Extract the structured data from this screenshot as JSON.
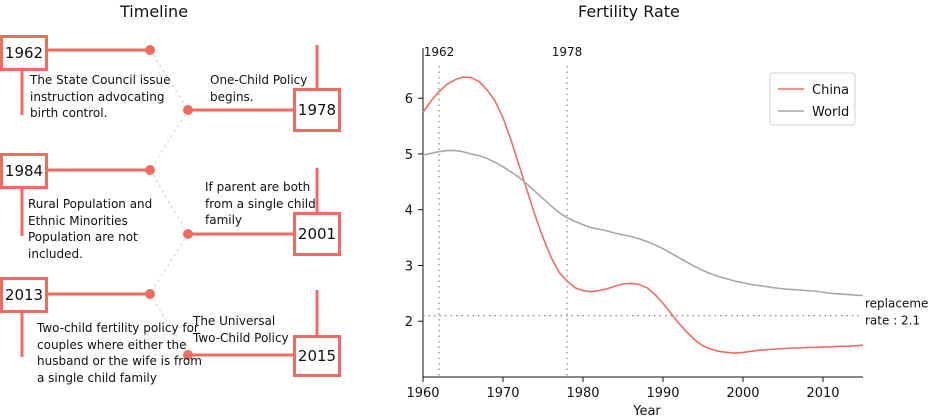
{
  "timeline": {
    "title": "Timeline",
    "events": [
      {
        "year": "1962",
        "text": "The State Council issue instruction advocating birth control."
      },
      {
        "year": "1978",
        "text": "One-Child Policy begins."
      },
      {
        "year": "1984",
        "text": "Rural Population and Ethnic Minorities Population are not included."
      },
      {
        "year": "2001",
        "text": "If parent are both from a single child family"
      },
      {
        "year": "2013",
        "text": "Two-child fertility policy for couples where either the husband or the wife is from a single child family"
      },
      {
        "year": "2015",
        "text": "The Universal Two-Child Policy"
      }
    ]
  },
  "chart_data": {
    "type": "line",
    "title": "Fertility Rate",
    "xlabel": "Year",
    "ylabel": "",
    "xlim": [
      1960,
      2015
    ],
    "ylim": [
      1,
      6.9
    ],
    "xticks": [
      1960,
      1970,
      1980,
      1990,
      2000,
      2010
    ],
    "yticks": [
      2,
      3,
      4,
      5,
      6
    ],
    "grid": false,
    "legend": "top-right",
    "colors": {
      "China": "#f26b63",
      "World": "#a8a8a8",
      "accent": "#f26b63",
      "reference": "#888888"
    },
    "series": [
      {
        "name": "China",
        "x": [
          1960,
          1961,
          1962,
          1963,
          1964,
          1965,
          1966,
          1967,
          1968,
          1969,
          1970,
          1971,
          1972,
          1973,
          1974,
          1975,
          1976,
          1977,
          1978,
          1979,
          1980,
          1981,
          1982,
          1983,
          1984,
          1985,
          1986,
          1987,
          1988,
          1989,
          1990,
          1991,
          1992,
          1993,
          1994,
          1995,
          1996,
          1997,
          1998,
          1999,
          2000,
          2001,
          2002,
          2003,
          2004,
          2005,
          2006,
          2007,
          2008,
          2009,
          2010,
          2011,
          2012,
          2013,
          2014,
          2015
        ],
        "y": [
          5.75,
          5.95,
          6.12,
          6.25,
          6.33,
          6.38,
          6.37,
          6.3,
          6.15,
          5.95,
          5.65,
          5.25,
          4.8,
          4.35,
          3.9,
          3.5,
          3.15,
          2.88,
          2.72,
          2.6,
          2.55,
          2.53,
          2.55,
          2.58,
          2.63,
          2.67,
          2.68,
          2.66,
          2.6,
          2.48,
          2.32,
          2.14,
          1.96,
          1.8,
          1.66,
          1.56,
          1.5,
          1.46,
          1.44,
          1.43,
          1.44,
          1.46,
          1.48,
          1.49,
          1.5,
          1.51,
          1.52,
          1.52,
          1.53,
          1.53,
          1.54,
          1.54,
          1.55,
          1.55,
          1.56,
          1.57
        ]
      },
      {
        "name": "World",
        "x": [
          1960,
          1961,
          1962,
          1963,
          1964,
          1965,
          1966,
          1967,
          1968,
          1969,
          1970,
          1971,
          1972,
          1973,
          1974,
          1975,
          1976,
          1977,
          1978,
          1979,
          1980,
          1981,
          1982,
          1983,
          1984,
          1985,
          1986,
          1987,
          1988,
          1989,
          1990,
          1991,
          1992,
          1993,
          1994,
          1995,
          1996,
          1997,
          1998,
          1999,
          2000,
          2001,
          2002,
          2003,
          2004,
          2005,
          2006,
          2007,
          2008,
          2009,
          2010,
          2011,
          2012,
          2013,
          2014,
          2015
        ],
        "y": [
          4.98,
          5.01,
          5.04,
          5.06,
          5.06,
          5.04,
          5.0,
          4.97,
          4.92,
          4.85,
          4.77,
          4.68,
          4.58,
          4.46,
          4.33,
          4.2,
          4.07,
          3.95,
          3.86,
          3.79,
          3.73,
          3.68,
          3.65,
          3.62,
          3.58,
          3.55,
          3.52,
          3.48,
          3.43,
          3.37,
          3.3,
          3.22,
          3.14,
          3.06,
          2.98,
          2.91,
          2.85,
          2.8,
          2.76,
          2.72,
          2.69,
          2.66,
          2.64,
          2.62,
          2.6,
          2.58,
          2.57,
          2.56,
          2.55,
          2.54,
          2.52,
          2.5,
          2.49,
          2.48,
          2.47,
          2.46
        ]
      }
    ],
    "annotations": [
      {
        "x": 1962,
        "label": "1962"
      },
      {
        "x": 1978,
        "label": "1978"
      }
    ],
    "reference_line": {
      "y": 2.1,
      "label_line1": "replacement",
      "label_line2": "rate : 2.1"
    }
  }
}
